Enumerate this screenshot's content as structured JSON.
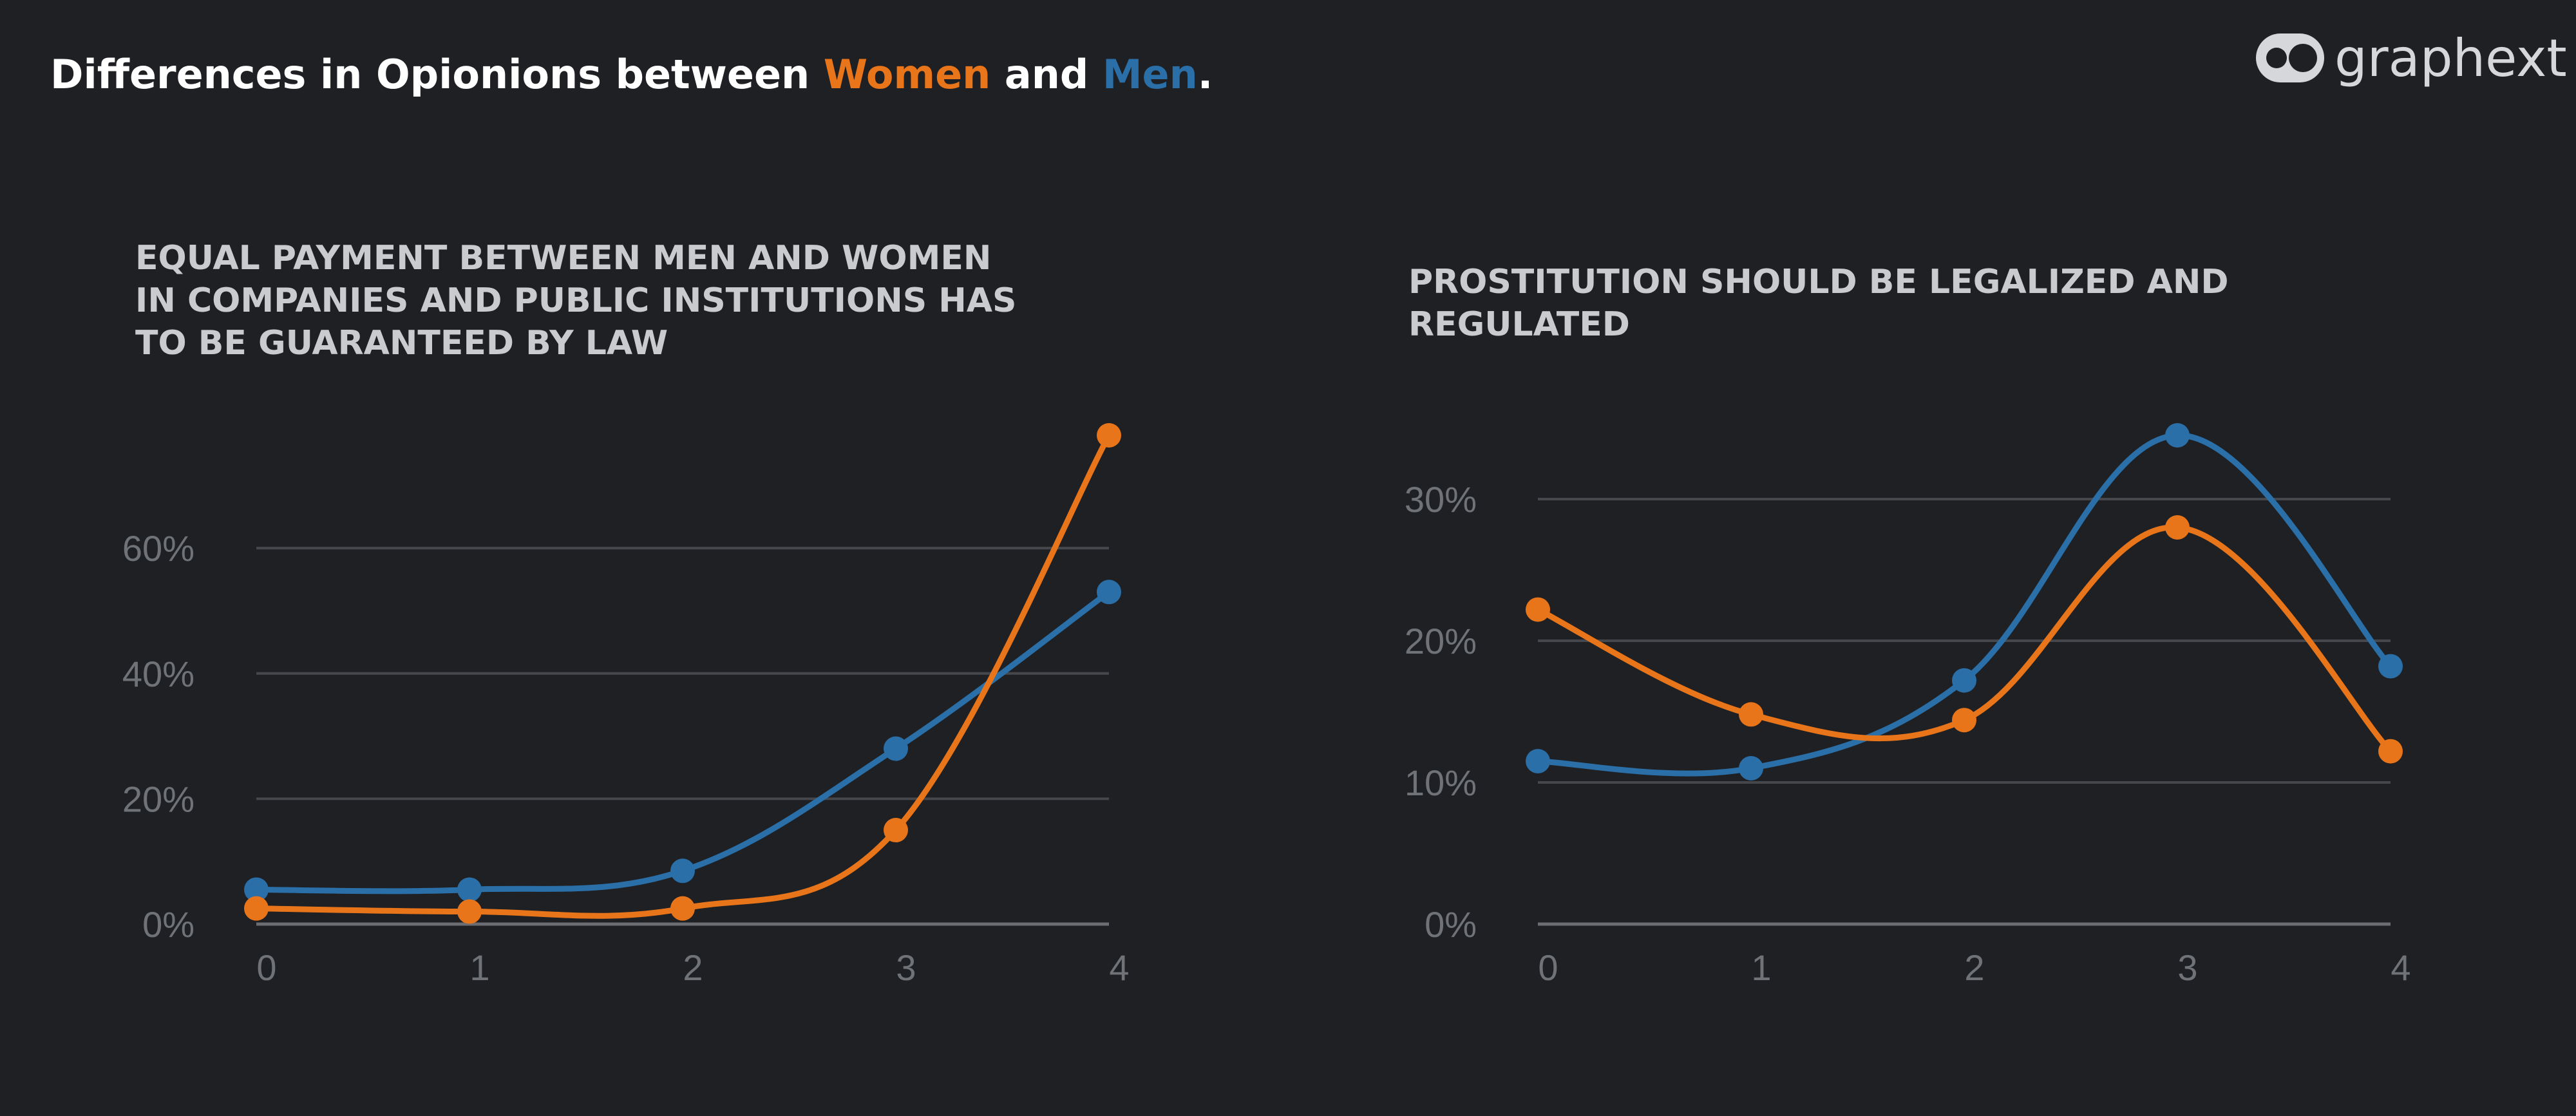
{
  "header": {
    "title_prefix": "Differences in Opionions between ",
    "title_women": "Women",
    "title_and": " and ",
    "title_men": "Men",
    "title_suffix": ".",
    "brand": "graphext"
  },
  "colors": {
    "background": "#1f2023",
    "women": "#e8751a",
    "men": "#2a6fa8",
    "title": "#ffffff",
    "chart_title": "#c9cbcf",
    "tick_label": "#6f7277",
    "gridline": "#45474c",
    "baseline": "#6b6d72",
    "logo": "#d5d7da"
  },
  "chart_data": [
    {
      "type": "line",
      "title_lines": [
        "EQUAL PAYMENT BETWEEN MEN AND WOMEN",
        "IN COMPANIES AND PUBLIC INSTITUTIONS HAS",
        "TO BE GUARANTEED BY LAW"
      ],
      "x": [
        0,
        1,
        2,
        3,
        4
      ],
      "ylim": [
        0,
        78
      ],
      "yticks": [
        0,
        20,
        40,
        60
      ],
      "ytick_labels": [
        "0%",
        "20%",
        "40%",
        "60%"
      ],
      "series": [
        {
          "color_key": "men",
          "values": [
            5.5,
            5.5,
            8.5,
            28,
            53
          ]
        },
        {
          "color_key": "women",
          "values": [
            2.5,
            2,
            2.5,
            15,
            78
          ]
        }
      ]
    },
    {
      "type": "line",
      "title_lines": [
        "PROSTITUTION SHOULD BE LEGALIZED AND",
        "REGULATED"
      ],
      "x": [
        0,
        1,
        2,
        3,
        4
      ],
      "ylim": [
        0,
        34.5
      ],
      "yticks": [
        0,
        10,
        20,
        30
      ],
      "ytick_labels": [
        "0%",
        "10%",
        "20%",
        "30%"
      ],
      "series": [
        {
          "color_key": "men",
          "values": [
            11.5,
            11,
            17.2,
            34.5,
            18.2
          ]
        },
        {
          "color_key": "women",
          "values": [
            22.2,
            14.8,
            14.4,
            28,
            12.2
          ]
        }
      ]
    }
  ]
}
